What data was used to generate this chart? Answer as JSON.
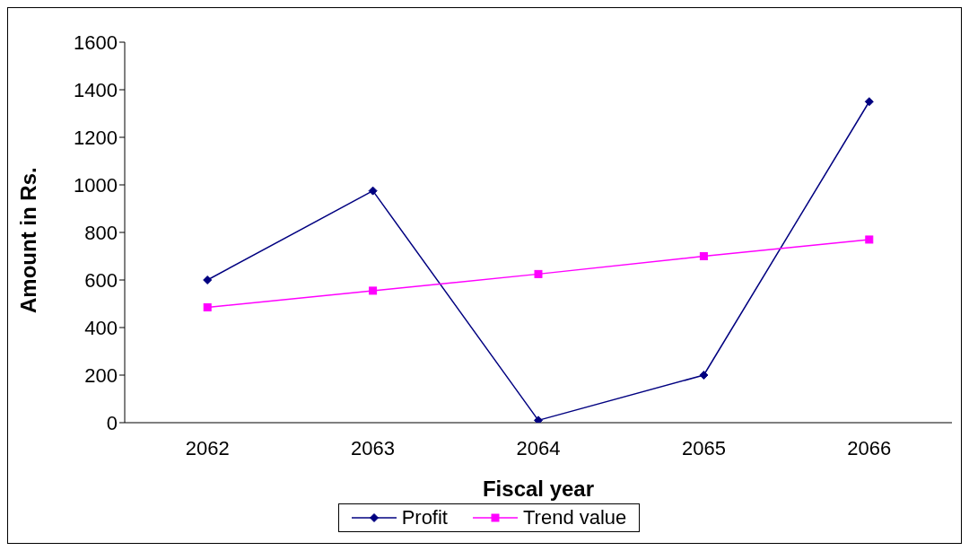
{
  "chart_data": {
    "type": "line",
    "xlabel": "Fiscal year",
    "ylabel": "Amount in Rs.",
    "categories": [
      "2062",
      "2063",
      "2064",
      "2065",
      "2066"
    ],
    "series": [
      {
        "name": "Profit",
        "color": "#000080",
        "marker": "diamond",
        "values": [
          600,
          975,
          10,
          200,
          1350
        ]
      },
      {
        "name": "Trend value",
        "color": "#ff00ff",
        "marker": "square",
        "values": [
          485,
          555,
          625,
          700,
          770
        ]
      }
    ],
    "ylim": [
      0,
      1600
    ],
    "yticks": [
      0,
      200,
      400,
      600,
      800,
      1000,
      1200,
      1400,
      1600
    ],
    "grid": false,
    "legend": "bottom"
  }
}
